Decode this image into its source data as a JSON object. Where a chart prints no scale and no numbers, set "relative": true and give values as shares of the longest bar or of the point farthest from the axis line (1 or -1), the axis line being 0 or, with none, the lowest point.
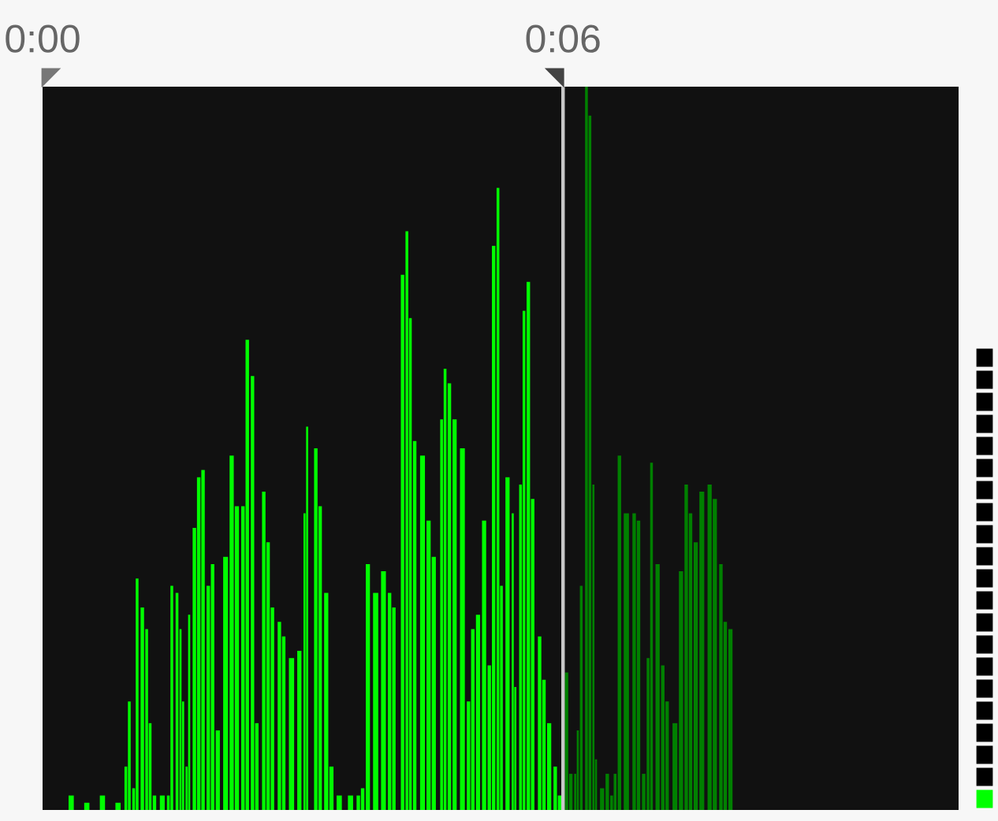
{
  "chart_data": {
    "type": "bar",
    "relative": true,
    "tick_labels": "x",
    "xlim": [
      0,
      10.56
    ],
    "xticks": [
      {
        "value": 0,
        "label": "0:00"
      },
      {
        "value": 6,
        "label": "0:06"
      }
    ],
    "series": [
      {
        "color": "#00ff00",
        "x": [
          0.33,
          0.51,
          0.69,
          0.87,
          0.96,
          1.0,
          1.05,
          1.09,
          1.15,
          1.2,
          1.24,
          1.29,
          1.38,
          1.45,
          1.49,
          1.55,
          1.59,
          1.62,
          1.66,
          1.69,
          1.75,
          1.8,
          1.85,
          1.91,
          1.96,
          2.02,
          2.11,
          2.18,
          2.24,
          2.31,
          2.36,
          2.42,
          2.47,
          2.55,
          2.6,
          2.65,
          2.73,
          2.78,
          2.87,
          2.96,
          3.02,
          3.05,
          3.15,
          3.2,
          3.27,
          3.33,
          3.42,
          3.55,
          3.64,
          3.69,
          3.75,
          3.84,
          3.93,
          4.0,
          4.05,
          4.15,
          4.2,
          4.24,
          4.29,
          4.38,
          4.45,
          4.51,
          4.6,
          4.64,
          4.69,
          4.75,
          4.84,
          4.91,
          4.96,
          5.02,
          5.09,
          5.15,
          5.2,
          5.25,
          5.29,
          5.36,
          5.42,
          5.45,
          5.51,
          5.55,
          5.6,
          5.65,
          5.73,
          5.78,
          5.84,
          5.91,
          5.96
        ],
        "values": [
          0.02,
          0.01,
          0.02,
          0.01,
          0.06,
          0.15,
          0.03,
          0.32,
          0.28,
          0.25,
          0.12,
          0.02,
          0.02,
          0.02,
          0.31,
          0.3,
          0.25,
          0.15,
          0.06,
          0.27,
          0.39,
          0.46,
          0.47,
          0.31,
          0.34,
          0.11,
          0.35,
          0.49,
          0.42,
          0.42,
          0.65,
          0.6,
          0.12,
          0.44,
          0.37,
          0.28,
          0.26,
          0.24,
          0.21,
          0.22,
          0.41,
          0.53,
          0.5,
          0.42,
          0.3,
          0.06,
          0.02,
          0.02,
          0.02,
          0.03,
          0.34,
          0.3,
          0.33,
          0.3,
          0.28,
          0.74,
          0.8,
          0.68,
          0.51,
          0.49,
          0.4,
          0.35,
          0.54,
          0.61,
          0.59,
          0.54,
          0.5,
          0.15,
          0.25,
          0.27,
          0.4,
          0.2,
          0.78,
          0.86,
          0.31,
          0.46,
          0.41,
          0.17,
          0.45,
          0.69,
          0.73,
          0.43,
          0.24,
          0.18,
          0.12,
          0.06,
          0.02
        ]
      },
      {
        "color": "#008000",
        "x": [
          6.04,
          6.09,
          6.14,
          6.17,
          6.21,
          6.27,
          6.31,
          6.35,
          6.38,
          6.45,
          6.51,
          6.56,
          6.6,
          6.65,
          6.73,
          6.82,
          6.87,
          6.93,
          6.98,
          7.02,
          7.09,
          7.15,
          7.2,
          7.29,
          7.36,
          7.42,
          7.47,
          7.53,
          7.6,
          7.69,
          7.75,
          7.82,
          7.87,
          7.93
        ],
        "values": [
          0.19,
          0.05,
          0.05,
          0.11,
          0.31,
          1,
          0.96,
          0.45,
          0.07,
          0.03,
          0.05,
          0.02,
          0.05,
          0.49,
          0.41,
          0.41,
          0.4,
          0.05,
          0.21,
          0.48,
          0.34,
          0.2,
          0.15,
          0.12,
          0.33,
          0.45,
          0.41,
          0.37,
          0.44,
          0.45,
          0.43,
          0.34,
          0.26,
          0.25
        ]
      }
    ],
    "ref_lines": [
      {
        "axis": "x",
        "value": 6,
        "color": "#c8c8c8"
      }
    ]
  }
}
